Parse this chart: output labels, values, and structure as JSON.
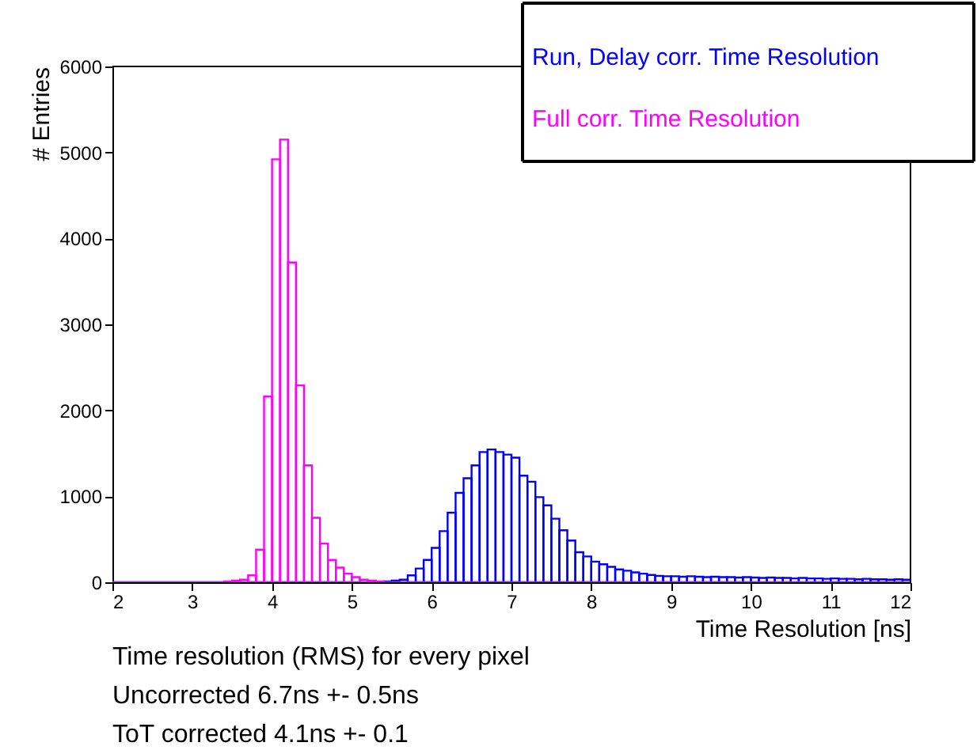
{
  "chart_data": {
    "type": "histogram",
    "xlabel": "Time Resolution [ns]",
    "ylabel": "# Entries",
    "bins": [
      2.0,
      2.1,
      2.2,
      2.3,
      2.4,
      2.5,
      2.6,
      2.7,
      2.8,
      2.9,
      3.0,
      3.1,
      3.2,
      3.3,
      3.4,
      3.5,
      3.6,
      3.7,
      3.8,
      3.9,
      4.0,
      4.1,
      4.2,
      4.3,
      4.4,
      4.5,
      4.6,
      4.7,
      4.8,
      4.9,
      5.0,
      5.1,
      5.2,
      5.3,
      5.4,
      5.5,
      5.6,
      5.7,
      5.8,
      5.9,
      6.0,
      6.1,
      6.2,
      6.3,
      6.4,
      6.5,
      6.6,
      6.7,
      6.8,
      6.9,
      7.0,
      7.1,
      7.2,
      7.3,
      7.4,
      7.5,
      7.6,
      7.7,
      7.8,
      7.9,
      8.0,
      8.1,
      8.2,
      8.3,
      8.4,
      8.5,
      8.6,
      8.7,
      8.8,
      8.9,
      9.0,
      9.1,
      9.2,
      9.3,
      9.4,
      9.5,
      9.6,
      9.7,
      9.8,
      9.9,
      10.0,
      10.1,
      10.2,
      10.3,
      10.4,
      10.5,
      10.6,
      10.7,
      10.8,
      10.9,
      11.0,
      11.1,
      11.2,
      11.3,
      11.4,
      11.5,
      11.6,
      11.7,
      11.8,
      11.9,
      12.0
    ],
    "series": [
      {
        "name": "Run, Delay corr. Time Resolution",
        "color": "#0000ff",
        "values": [
          0,
          0,
          0,
          0,
          0,
          0,
          0,
          0,
          0,
          0,
          0,
          0,
          0,
          0,
          0,
          0,
          0,
          0,
          0,
          0,
          0,
          0,
          0,
          0,
          0,
          0,
          0,
          0,
          0,
          0,
          0,
          0,
          0,
          0,
          10,
          20,
          30,
          80,
          160,
          260,
          400,
          595,
          810,
          1040,
          1210,
          1360,
          1515,
          1545,
          1515,
          1485,
          1450,
          1240,
          1170,
          990,
          895,
          740,
          605,
          485,
          350,
          300,
          240,
          210,
          180,
          150,
          135,
          115,
          100,
          85,
          75,
          70,
          70,
          65,
          70,
          65,
          60,
          65,
          60,
          60,
          55,
          60,
          55,
          50,
          55,
          50,
          50,
          45,
          50,
          45,
          45,
          40,
          45,
          40,
          40,
          35,
          40,
          35,
          35,
          30,
          35,
          30
        ]
      },
      {
        "name": "Full corr. Time Resolution",
        "color": "#ff00ff",
        "values": [
          0,
          0,
          0,
          0,
          0,
          0,
          0,
          0,
          0,
          0,
          0,
          0,
          0,
          0,
          10,
          20,
          30,
          80,
          380,
          2160,
          4920,
          5150,
          3720,
          2290,
          1360,
          750,
          450,
          260,
          170,
          100,
          60,
          30,
          20,
          10,
          0,
          0,
          0,
          0,
          0,
          0,
          0,
          0,
          0,
          0,
          0,
          0,
          0,
          0,
          0,
          0,
          0,
          0,
          0,
          0,
          0,
          0,
          0,
          0,
          0,
          0,
          0,
          0,
          0,
          0,
          0,
          0,
          0,
          0,
          0,
          0,
          0,
          0,
          0,
          0,
          0,
          0,
          0,
          0,
          0,
          0,
          0,
          0,
          0,
          0,
          0,
          0,
          0,
          0,
          0,
          0,
          0,
          0,
          0,
          0,
          0,
          0,
          0,
          0,
          0,
          0
        ]
      }
    ],
    "xlim": [
      2,
      12
    ],
    "xticks": [
      2,
      3,
      4,
      5,
      6,
      7,
      8,
      9,
      10,
      11,
      12
    ],
    "ylim": [
      0,
      6000
    ],
    "yticks": [
      0,
      1000,
      2000,
      3000,
      4000,
      5000,
      6000
    ],
    "grid": false,
    "legend": "top right",
    "annotations": [
      "Time resolution (RMS) for every pixel",
      "Uncorrected 6.7ns +- 0.5ns",
      "ToT corrected 4.1ns +- 0.1"
    ]
  }
}
